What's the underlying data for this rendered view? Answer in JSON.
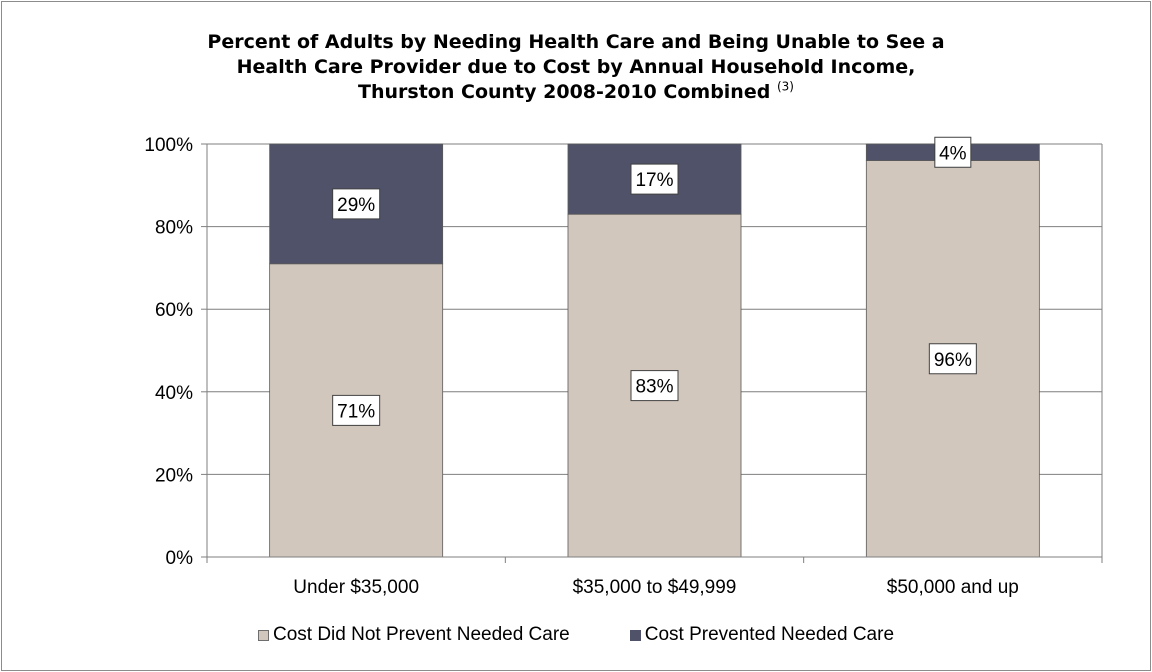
{
  "chart_data": {
    "type": "bar",
    "stacked": true,
    "title_lines": [
      "Percent of Adults by Needing Health Care and Being Unable to See a",
      "Health Care Provider due to Cost by Annual Household Income,",
      "Thurston County 2008-2010 Combined"
    ],
    "title_superscript": "(3)",
    "categories": [
      "Under $35,000",
      "$35,000 to $49,999",
      "$50,000 and up"
    ],
    "series": [
      {
        "name": "Cost Did Not Prevent Needed Care",
        "values": [
          71,
          83,
          96
        ],
        "labels": [
          "71%",
          "83%",
          "96%"
        ],
        "color": "#d2c7bd"
      },
      {
        "name": "Cost Prevented Needed Care",
        "values": [
          29,
          17,
          4
        ],
        "labels": [
          "29%",
          "17%",
          "4%"
        ],
        "color": "#4f5268"
      }
    ],
    "ylim": [
      0,
      100
    ],
    "yticks": [
      0,
      20,
      40,
      60,
      80,
      100
    ],
    "ytick_labels": [
      "0%",
      "20%",
      "40%",
      "60%",
      "80%",
      "100%"
    ],
    "grid": true,
    "legend_position": "bottom"
  }
}
